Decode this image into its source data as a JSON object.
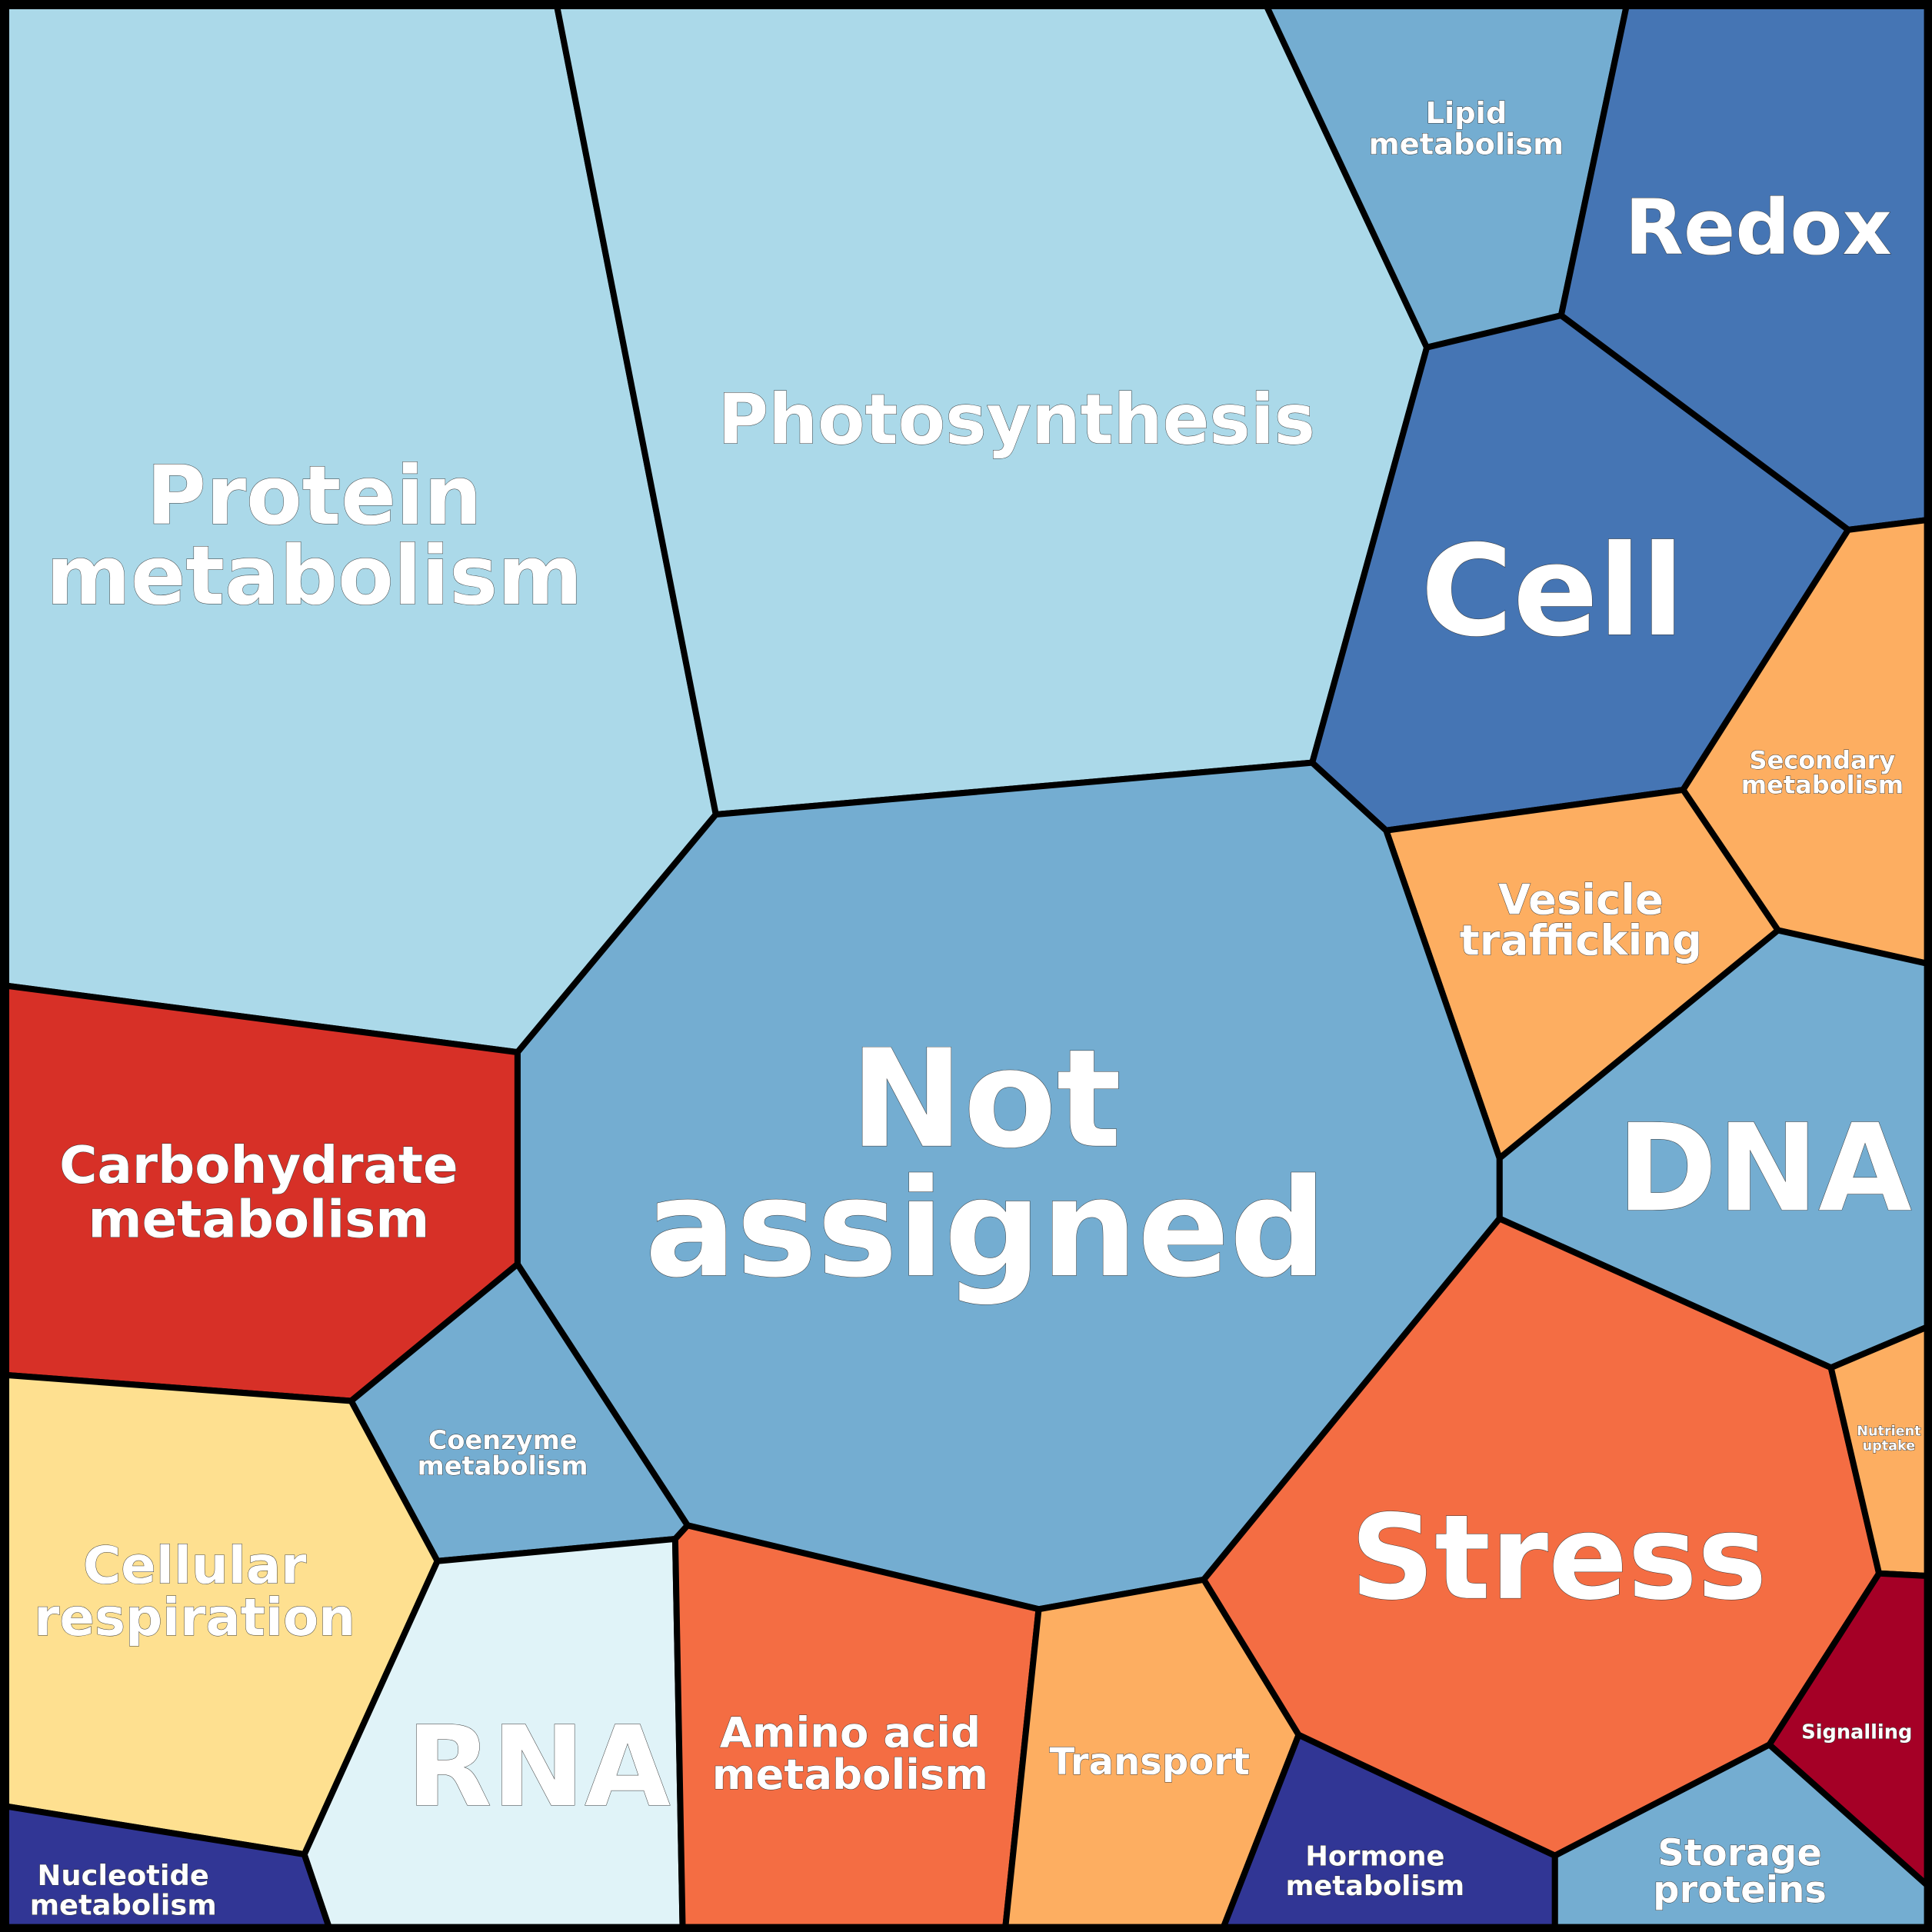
{
  "chart_data": {
    "type": "voronoi-treemap",
    "cells": [
      {
        "name": "Protein metabolism",
        "lines": [
          "Protein",
          "metabolism"
        ],
        "color": "#abd9e9"
      },
      {
        "name": "Photosynthesis",
        "lines": [
          "Photosynthesis"
        ],
        "color": "#abd9e9"
      },
      {
        "name": "Lipid metabolism",
        "lines": [
          "Lipid",
          "metabolism"
        ],
        "color": "#74add1"
      },
      {
        "name": "Redox",
        "lines": [
          "Redox"
        ],
        "color": "#4575b4"
      },
      {
        "name": "Cell",
        "lines": [
          "Cell"
        ],
        "color": "#4575b4"
      },
      {
        "name": "Secondary metabolism",
        "lines": [
          "Secondary",
          "metabolism"
        ],
        "color": "#fdae61"
      },
      {
        "name": "Vesicle trafficking",
        "lines": [
          "Vesicle",
          "trafficking"
        ],
        "color": "#fdae61"
      },
      {
        "name": "DNA",
        "lines": [
          "DNA"
        ],
        "color": "#74add1"
      },
      {
        "name": "Not assigned",
        "lines": [
          "Not",
          "assigned"
        ],
        "color": "#74add1"
      },
      {
        "name": "Carbohydrate metabolism",
        "lines": [
          "Carbohydrate",
          "metabolism"
        ],
        "color": "#d73027"
      },
      {
        "name": "Coenzyme metabolism",
        "lines": [
          "Coenzyme",
          "metabolism"
        ],
        "color": "#74add1"
      },
      {
        "name": "Cellular respiration",
        "lines": [
          "Cellular",
          "respiration"
        ],
        "color": "#fee090"
      },
      {
        "name": "Nucleotide metabolism",
        "lines": [
          "Nucleotide",
          "metabolism"
        ],
        "color": "#313695"
      },
      {
        "name": "RNA",
        "lines": [
          "RNA"
        ],
        "color": "#e0f3f8"
      },
      {
        "name": "Amino acid metabolism",
        "lines": [
          "Amino acid",
          "metabolism"
        ],
        "color": "#f46d43"
      },
      {
        "name": "Transport",
        "lines": [
          "Transport"
        ],
        "color": "#fdae61"
      },
      {
        "name": "Hormone metabolism",
        "lines": [
          "Hormone",
          "metabolism"
        ],
        "color": "#313695"
      },
      {
        "name": "Stress",
        "lines": [
          "Stress"
        ],
        "color": "#f46d43"
      },
      {
        "name": "Nutrient uptake",
        "lines": [
          "Nutrient",
          "uptake"
        ],
        "color": "#fdae61"
      },
      {
        "name": "Signalling",
        "lines": [
          "Signalling"
        ],
        "color": "#a50026"
      },
      {
        "name": "Storage proteins",
        "lines": [
          "Storage",
          "proteins"
        ],
        "color": "#74add1"
      }
    ]
  }
}
